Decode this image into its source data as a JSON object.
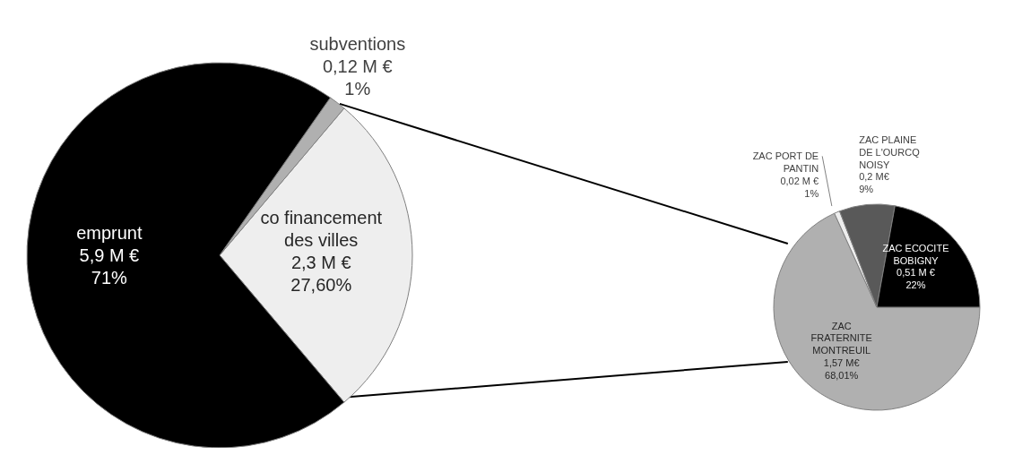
{
  "chart_data": [
    {
      "type": "pie",
      "categories": [
        "co financement des villes",
        "subventions",
        "emprunt"
      ],
      "values": [
        2.3,
        0.12,
        5.9
      ],
      "colors": [
        "#eeeeee",
        "#b0b0b0",
        "#000000"
      ],
      "value_labels": [
        "2,3 M €\n27,60%",
        "0,12 M €\n1%",
        "5,9 M €\n71%"
      ]
    },
    {
      "type": "pie",
      "categories": [
        "ZAC FRATERNITE MONTREUIL",
        "ZAC PORT DE PANTIN",
        "ZAC PLAINE DE L'OURCQ NOISY",
        "ZAC ECOCITE BOBIGNY"
      ],
      "values": [
        1.57,
        0.02,
        0.2,
        0.51
      ],
      "colors": [
        "#b0b0b0",
        "#eeeeee",
        "#595959",
        "#000000"
      ],
      "value_labels": [
        "1,57 M€\n68,01%",
        "0,02 M €\n1%",
        "0,2 M€\n9%",
        "0,51 M €\n22%"
      ]
    }
  ]
}
